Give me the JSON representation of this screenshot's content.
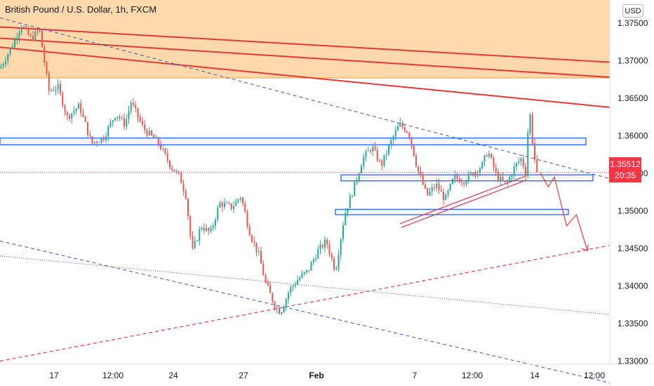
{
  "header": {
    "title": "British Pound / U.S. Dollar, 1h, FXCM",
    "currency": "USD"
  },
  "price_tag": {
    "price": "1.35512",
    "countdown": "20:35"
  },
  "colors": {
    "up": "#26a69a",
    "down": "#ef5350",
    "zone": "#ffcc8f",
    "resistance": "#e53935",
    "box": "#2962ff",
    "trend_blue": "#3f51b5",
    "trend_red": "#e53950",
    "forecast": "#f23645"
  },
  "chart_data": {
    "type": "candlestick",
    "symbol": "GBPUSD",
    "timeframe": "1h",
    "x_tick_labels": [
      "17",
      "12:00",
      "24",
      "27",
      "Feb",
      "7",
      "12:00",
      "14",
      "12:00"
    ],
    "y_tick_labels": [
      "1.37500",
      "1.37000",
      "1.36500",
      "1.36000",
      "1.35500",
      "1.35000",
      "1.34500",
      "1.34000",
      "1.33500",
      "1.33000"
    ],
    "ylim": [
      1.3275,
      1.3785
    ],
    "last_price": 1.35512,
    "supply_zone": [
      1.3677,
      1.3785
    ],
    "horizontal_boxes": [
      {
        "low": 1.3588,
        "high": 1.3597
      },
      {
        "low": 1.354,
        "high": 1.3548
      },
      {
        "low": 1.3495,
        "high": 1.3502
      }
    ],
    "path_points": [
      [
        0,
        1.369
      ],
      [
        0.02,
        1.372
      ],
      [
        0.035,
        1.3748
      ],
      [
        0.05,
        1.373
      ],
      [
        0.065,
        1.374
      ],
      [
        0.08,
        1.366
      ],
      [
        0.095,
        1.3665
      ],
      [
        0.11,
        1.3625
      ],
      [
        0.13,
        1.364
      ],
      [
        0.15,
        1.359
      ],
      [
        0.17,
        1.3598
      ],
      [
        0.19,
        1.363
      ],
      [
        0.205,
        1.3615
      ],
      [
        0.215,
        1.3645
      ],
      [
        0.235,
        1.361
      ],
      [
        0.26,
        1.359
      ],
      [
        0.28,
        1.356
      ],
      [
        0.295,
        1.3545
      ],
      [
        0.305,
        1.352
      ],
      [
        0.315,
        1.3445
      ],
      [
        0.33,
        1.348
      ],
      [
        0.345,
        1.347
      ],
      [
        0.36,
        1.351
      ],
      [
        0.38,
        1.3505
      ],
      [
        0.395,
        1.352
      ],
      [
        0.41,
        1.347
      ],
      [
        0.425,
        1.344
      ],
      [
        0.435,
        1.3405
      ],
      [
        0.45,
        1.3375
      ],
      [
        0.46,
        1.3365
      ],
      [
        0.475,
        1.3395
      ],
      [
        0.49,
        1.341
      ],
      [
        0.505,
        1.342
      ],
      [
        0.52,
        1.3445
      ],
      [
        0.535,
        1.346
      ],
      [
        0.55,
        1.342
      ],
      [
        0.565,
        1.3495
      ],
      [
        0.58,
        1.353
      ],
      [
        0.595,
        1.357
      ],
      [
        0.61,
        1.3585
      ],
      [
        0.625,
        1.356
      ],
      [
        0.64,
        1.359
      ],
      [
        0.655,
        1.3615
      ],
      [
        0.67,
        1.3605
      ],
      [
        0.685,
        1.3555
      ],
      [
        0.7,
        1.352
      ],
      [
        0.715,
        1.3535
      ],
      [
        0.73,
        1.3515
      ],
      [
        0.745,
        1.3545
      ],
      [
        0.76,
        1.354
      ],
      [
        0.775,
        1.355
      ],
      [
        0.79,
        1.356
      ],
      [
        0.8,
        1.358
      ],
      [
        0.815,
        1.3545
      ],
      [
        0.83,
        1.3535
      ],
      [
        0.845,
        1.356
      ],
      [
        0.855,
        1.357
      ],
      [
        0.862,
        1.355
      ],
      [
        0.868,
        1.364
      ],
      [
        0.874,
        1.3585
      ],
      [
        0.88,
        1.3551
      ]
    ],
    "forecast_path": [
      [
        883,
        1.3551
      ],
      [
        896,
        1.3532
      ],
      [
        906,
        1.3545
      ],
      [
        926,
        1.348
      ],
      [
        942,
        1.3495
      ],
      [
        960,
        1.3447
      ]
    ],
    "trendlines": [
      {
        "kind": "resistance",
        "from": [
          0,
          1.3745
        ],
        "to": [
          1,
          1.3698
        ]
      },
      {
        "kind": "resistance",
        "from": [
          0,
          1.373
        ],
        "to": [
          1,
          1.3678
        ]
      },
      {
        "kind": "resistance",
        "from": [
          0,
          1.3718
        ],
        "to": [
          1,
          1.3638
        ]
      },
      {
        "kind": "dashed-blue",
        "from": [
          0,
          1.3757
        ],
        "to": [
          1,
          1.3543
        ]
      },
      {
        "kind": "dashed-blue",
        "from": [
          0,
          1.346
        ],
        "to": [
          1,
          1.3271
        ]
      },
      {
        "kind": "dotted",
        "from": [
          0,
          1.344
        ],
        "to": [
          1,
          1.3362
        ]
      },
      {
        "kind": "dashed-red",
        "from": [
          0,
          1.33
        ],
        "to": [
          1,
          1.3454
        ]
      }
    ],
    "grid": false
  }
}
